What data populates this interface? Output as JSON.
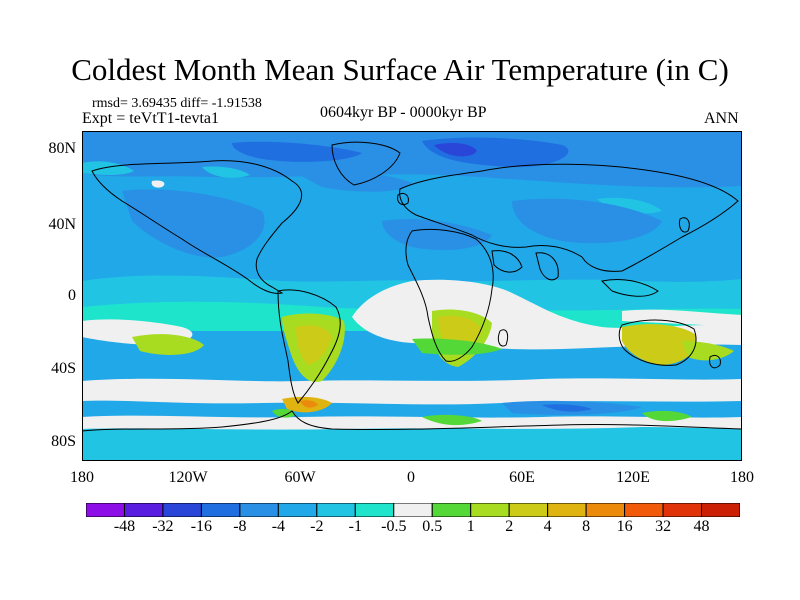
{
  "title": "Coldest Month Mean Surface Air Temperature (in C)",
  "stats": "rmsd= 3.69435  diff= -1.91538",
  "expt": "Expt = teVtT1-tevta1",
  "period": "0604kyr BP - 0000kyr BP",
  "season": "ANN",
  "lat_labels": [
    "80N",
    "40N",
    "0",
    "40S",
    "80S"
  ],
  "lon_labels": [
    "180",
    "120W",
    "60W",
    "0",
    "60E",
    "120E",
    "180"
  ],
  "colorbar": {
    "labels": [
      "-48",
      "-32",
      "-16",
      "-8",
      "-4",
      "-2",
      "-1",
      "-0.5",
      "0.5",
      "1",
      "2",
      "4",
      "8",
      "16",
      "32",
      "48"
    ],
    "colors": [
      "#8e0ee8",
      "#5a1ee0",
      "#2a46d8",
      "#1f6fe0",
      "#2a90e6",
      "#20a8e8",
      "#22c4e4",
      "#1ee4cc",
      "#f0f0f0",
      "#54d838",
      "#a8dc20",
      "#cccc18",
      "#e0b410",
      "#ec8a0c",
      "#f05a08",
      "#e03408",
      "#cc2004"
    ]
  },
  "colors": {
    "ocean_background": "#20a8e8",
    "no_change": "#f0f0f0",
    "coastline": "#000000"
  }
}
